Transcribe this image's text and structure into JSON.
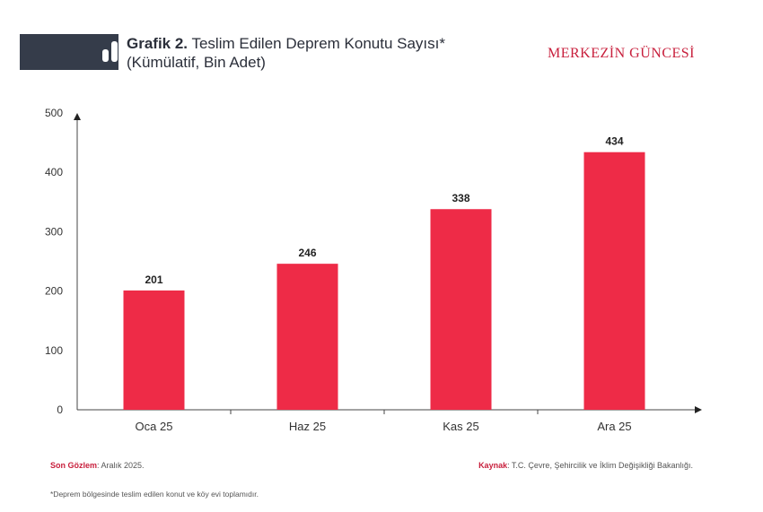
{
  "header": {
    "title_bold": "Grafik 2.",
    "title_rest": "Teslim Edilen Deprem Konutu Sayısı*",
    "subtitle": "(Kümülatif, Bin Adet)",
    "brand": "MERKEZİN GÜNCESİ"
  },
  "colors": {
    "bar": "#ee2b47",
    "brand": "#c8203d",
    "badge": "#353c4a"
  },
  "chart_data": {
    "type": "bar",
    "categories": [
      "Oca 25",
      "Haz 25",
      "Kas 25",
      "Ara 25"
    ],
    "values": [
      201,
      246,
      338,
      434
    ],
    "data_labels": [
      "201",
      "246",
      "338",
      "434"
    ],
    "ylim": [
      0,
      500
    ],
    "yticks": [
      0,
      100,
      200,
      300,
      400,
      500
    ],
    "grid": false
  },
  "footer": {
    "last_obs_label": "Son Gözlem",
    "last_obs_value": ": Aralık 2025.",
    "source_label": "Kaynak",
    "source_value": ": T.C. Çevre, Şehircilik ve İklim Değişikliği Bakanlığı.",
    "footnote": "*Deprem bölgesinde teslim edilen konut ve köy evi toplamıdır."
  }
}
